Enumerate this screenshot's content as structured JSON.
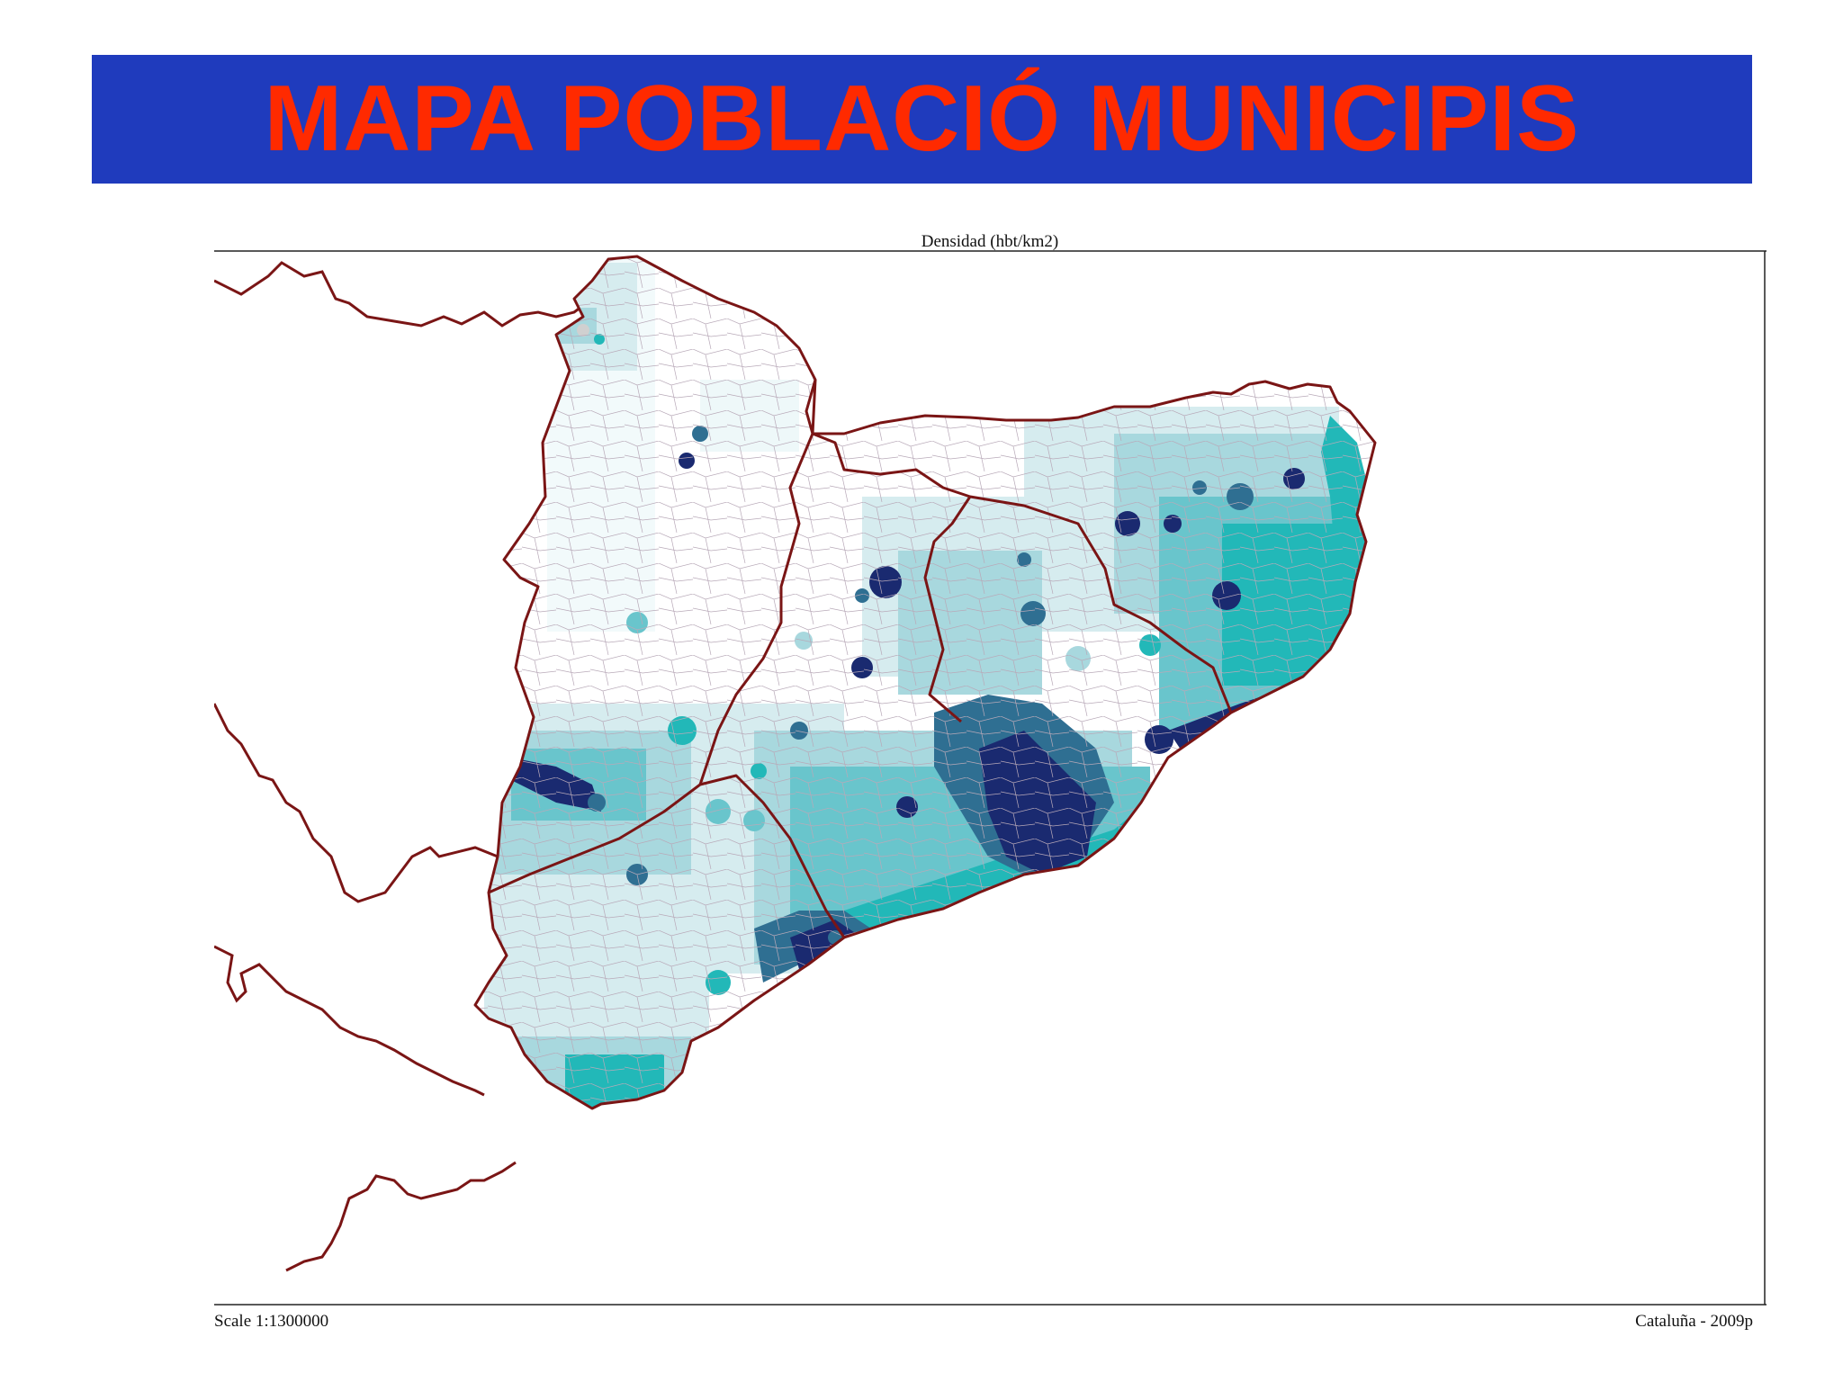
{
  "title": "MAPA POBLACIÓ MUNICIPIS",
  "map": {
    "caption": "Densidad (hbt/km2)",
    "scale": "Scale 1:1300000",
    "source": "Cataluña - 2009p",
    "colors": {
      "banner": "#1f3bbd",
      "title_text": "#ff2a00",
      "border": "#7a1515",
      "class_lowest": "#ffffff",
      "class_low": "#d6ecef",
      "class_mid_low": "#a8d8de",
      "class_mid": "#69c5cc",
      "class_mid_high": "#22b8b8",
      "class_high": "#2f6f92",
      "class_highest": "#1a2a70"
    }
  }
}
